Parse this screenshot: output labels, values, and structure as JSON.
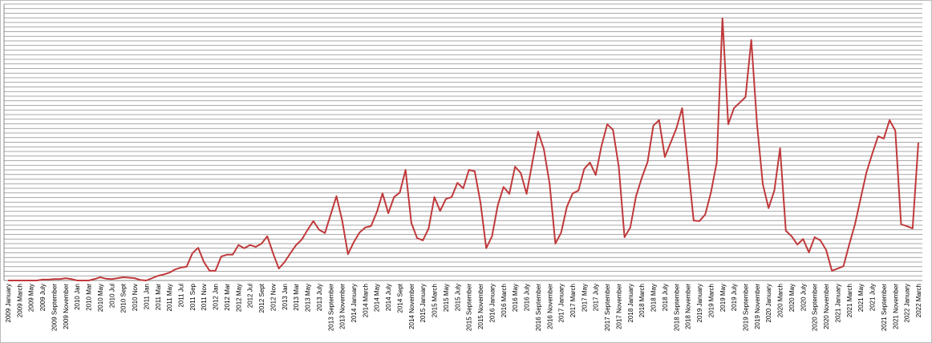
{
  "chart_data": {
    "type": "line",
    "categories": [
      "2009 January",
      null,
      "2009 March",
      null,
      "2009 May",
      null,
      "2009 July",
      null,
      "2009 September",
      null,
      "2009 November",
      null,
      "2010 Jan",
      null,
      "2010 Mar",
      null,
      "2010 May",
      null,
      "2010 Jul",
      null,
      "2010 Sept",
      null,
      "2010 Nov",
      null,
      "2011 Jan",
      null,
      "2011 Mar",
      null,
      "2011 May",
      null,
      "2011 Jul",
      null,
      "2011 Sep",
      null,
      "2011 Nov",
      null,
      "2012 Jan",
      null,
      "2012 Mar",
      null,
      "2012 May",
      null,
      "2012 Jul",
      null,
      "2012 Sept",
      null,
      "2012 Nov",
      null,
      "2013 Jan",
      null,
      "2013 Mar",
      null,
      "2013 May",
      null,
      "2013 July",
      null,
      "2013 September",
      null,
      "2013 November",
      null,
      "2014 January",
      null,
      "2014 March",
      null,
      "2014 May",
      null,
      "2014 July",
      null,
      "2014 Sept",
      null,
      "2014 November",
      null,
      "2015 January",
      null,
      "2015 March",
      null,
      "2015 May",
      null,
      "2015 July",
      null,
      "2015 September",
      null,
      "2015 November",
      null,
      "2016 January",
      null,
      "2016 March",
      null,
      "2016 May",
      null,
      "2016 July",
      null,
      "2016 September",
      null,
      "2016 November",
      null,
      "2017 January",
      null,
      "2017 March",
      null,
      "2017 May",
      null,
      "2017 July",
      null,
      "2017 September",
      null,
      "2017 November",
      null,
      "2018 January",
      null,
      "2018 March",
      null,
      "2018 May",
      null,
      "2018 July",
      null,
      "2018 September",
      null,
      "2018 November",
      null,
      "2019 January",
      null,
      "2019 March",
      null,
      "2019 May",
      null,
      "2019 July",
      null,
      "2019 September",
      null,
      "2019 November",
      null,
      "2020 January",
      null,
      "2020 March",
      null,
      "2020 May",
      null,
      "2020 July",
      null,
      "2020 September",
      null,
      "2020 November",
      null,
      "2021 January",
      null,
      "2021 March",
      null,
      "2021 May",
      null,
      "2021 July",
      null,
      "2021 September",
      null,
      "2021 November",
      null,
      "2022 January",
      null,
      "2022 March"
    ],
    "values": [
      0,
      0,
      0,
      0,
      0,
      0,
      0.2,
      0.2,
      0.3,
      0.3,
      0.5,
      0.3,
      0,
      0,
      0,
      0.3,
      0.7,
      0.4,
      0.3,
      0.5,
      0.7,
      0.6,
      0.5,
      0.1,
      0,
      0.5,
      1.0,
      1.3,
      1.7,
      2.4,
      2.8,
      3.0,
      5.9,
      7.1,
      4.0,
      2.1,
      2.1,
      5.2,
      5.6,
      5.6,
      7.7,
      7.0,
      7.7,
      7.3,
      8.0,
      9.6,
      5.9,
      2.6,
      4.0,
      5.9,
      7.7,
      8.9,
      11.0,
      12.9,
      11.0,
      10.3,
      14.3,
      18.3,
      13.0,
      5.7,
      8.3,
      10.4,
      11.5,
      11.8,
      14.8,
      18.9,
      14.6,
      18.1,
      19.1,
      24.0,
      12.5,
      9.2,
      8.7,
      11.3,
      18.1,
      15.1,
      17.7,
      18.1,
      21.2,
      20.0,
      24.0,
      23.7,
      16.9,
      7.0,
      9.6,
      16.3,
      20.3,
      18.8,
      24.7,
      23.3,
      18.8,
      25.6,
      32.3,
      28.5,
      21.0,
      8.0,
      10.4,
      16.0,
      18.9,
      19.5,
      24.2,
      25.6,
      22.9,
      29.2,
      33.9,
      32.7,
      24.7,
      9.4,
      11.5,
      18.3,
      22.3,
      25.7,
      33.6,
      34.8,
      26.8,
      29.9,
      33.0,
      37.4,
      25.2,
      13.0,
      12.9,
      14.3,
      19.1,
      25.6,
      56.9,
      33.9,
      37.4,
      38.6,
      39.8,
      52.2,
      33.9,
      20.9,
      15.7,
      19.5,
      28.7,
      10.8,
      9.6,
      7.8,
      9.0,
      6.1,
      9.4,
      8.7,
      6.6,
      2.1,
      2.6,
      3.1,
      7.8,
      12.2,
      17.9,
      23.5,
      27.5,
      31.3,
      30.8,
      34.8,
      32.5,
      12.2,
      11.8,
      11.3,
      29.9
    ],
    "color": "#c0393b",
    "ylim": [
      0,
      60
    ],
    "yticks": [
      0,
      1,
      2,
      3,
      4,
      5,
      6,
      7,
      8,
      9,
      10,
      11,
      12,
      13,
      14,
      15,
      16,
      17,
      18,
      19,
      20,
      21,
      22,
      23,
      24,
      25,
      26,
      27,
      28,
      29,
      30,
      31,
      32,
      33,
      34,
      35,
      36,
      37,
      38,
      39,
      40,
      41,
      42,
      43,
      44,
      45,
      46,
      47,
      48,
      49,
      50,
      51,
      52,
      53,
      54,
      55,
      56,
      57,
      58,
      59,
      60
    ],
    "grid": true
  }
}
